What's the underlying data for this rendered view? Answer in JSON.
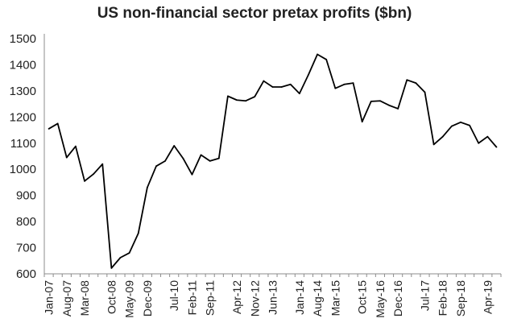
{
  "chart_data": {
    "type": "line",
    "title": "US non-financial sector pretax profits ($bn)",
    "xlabel": "",
    "ylabel": "",
    "ylim": [
      600,
      1500
    ],
    "yticks": [
      600,
      700,
      800,
      900,
      1000,
      1100,
      1200,
      1300,
      1400,
      1500
    ],
    "grid": false,
    "legend": "none",
    "x_tick_labels": [
      {
        "label": "Jan-07",
        "index": 0
      },
      {
        "label": "Aug-07",
        "index": 2
      },
      {
        "label": "Mar-08",
        "index": 4
      },
      {
        "label": "Oct-08",
        "index": 7
      },
      {
        "label": "May-09",
        "index": 9
      },
      {
        "label": "Dec-09",
        "index": 11
      },
      {
        "label": "Jul-10",
        "index": 14
      },
      {
        "label": "Feb-11",
        "index": 16
      },
      {
        "label": "Sep-11",
        "index": 18
      },
      {
        "label": "Apr-12",
        "index": 21
      },
      {
        "label": "Nov-12",
        "index": 23
      },
      {
        "label": "Jun-13",
        "index": 25
      },
      {
        "label": "Jan-14",
        "index": 28
      },
      {
        "label": "Aug-14",
        "index": 30
      },
      {
        "label": "Mar-15",
        "index": 32
      },
      {
        "label": "Oct-15",
        "index": 35
      },
      {
        "label": "May-16",
        "index": 37
      },
      {
        "label": "Dec-16",
        "index": 39
      },
      {
        "label": "Jul-17",
        "index": 42
      },
      {
        "label": "Feb-18",
        "index": 44
      },
      {
        "label": "Sep-18",
        "index": 46
      },
      {
        "label": "Apr-19",
        "index": 49
      }
    ],
    "series": [
      {
        "name": "US non-financial sector pretax profits",
        "color": "#000000",
        "values": [
          1155,
          1175,
          1045,
          1088,
          955,
          982,
          1020,
          622,
          662,
          680,
          755,
          930,
          1012,
          1032,
          1090,
          1042,
          980,
          1055,
          1032,
          1042,
          1280,
          1265,
          1262,
          1278,
          1338,
          1315,
          1315,
          1325,
          1290,
          1362,
          1440,
          1420,
          1310,
          1325,
          1330,
          1182,
          1260,
          1262,
          1245,
          1232,
          1342,
          1330,
          1295,
          1095,
          1125,
          1165,
          1180,
          1168,
          1100,
          1125,
          1085
        ]
      }
    ]
  }
}
